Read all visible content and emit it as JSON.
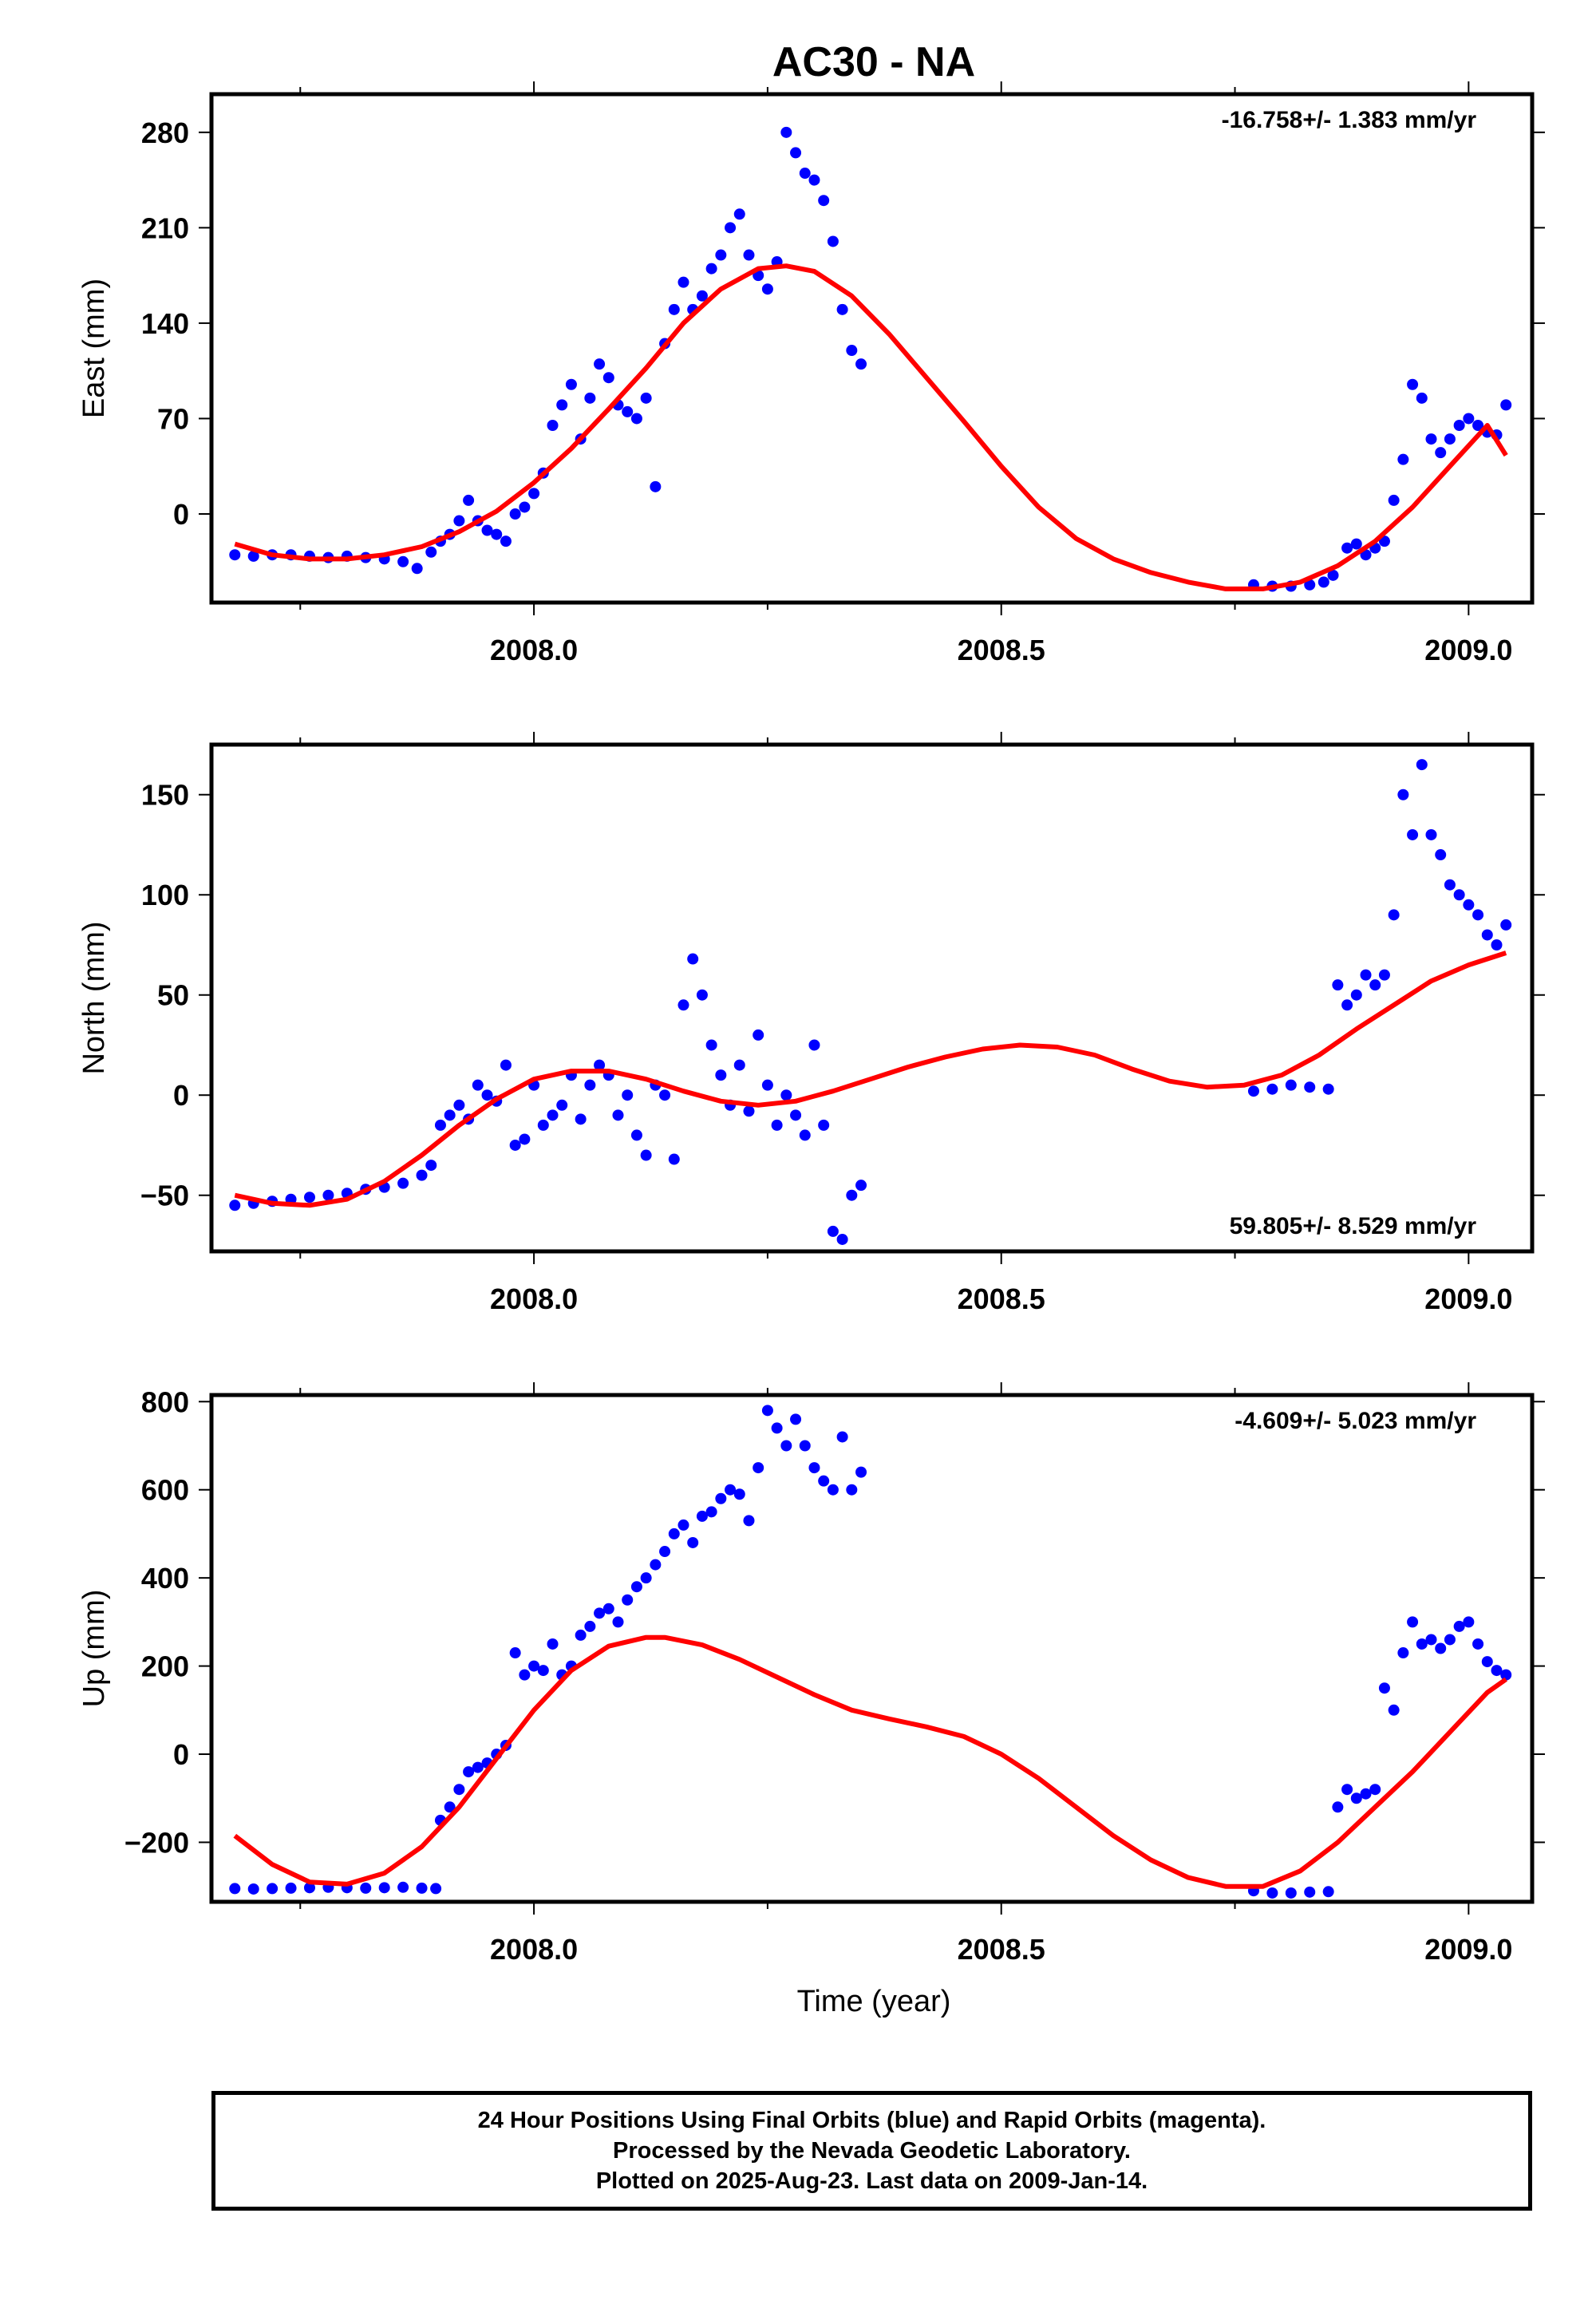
{
  "chart_data": {
    "title": "AC30 - NA",
    "type": "scatter",
    "xlabel": "Time (year)",
    "xlim": [
      2007.655,
      2009.068
    ],
    "xticks": [
      2008.0,
      2008.5,
      2009.0
    ],
    "xtick_labels": [
      "2008.0",
      "2008.5",
      "2009.0"
    ],
    "panels": [
      {
        "id": "east",
        "ylabel": "East (mm)",
        "ylim": [
          -65,
          308
        ],
        "yticks": [
          0,
          70,
          140,
          210,
          280
        ],
        "ytick_labels": [
          "0",
          "70",
          "140",
          "210",
          "280"
        ],
        "annotation": "-16.758+/- 1.383 mm/yr",
        "annotation_position": "top-right",
        "series": [
          {
            "kind": "scatter",
            "color": "#0000ff",
            "x": [
              2007.68,
              2007.7,
              2007.72,
              2007.74,
              2007.76,
              2007.78,
              2007.8,
              2007.82,
              2007.84,
              2007.86,
              2007.875,
              2007.89,
              2007.9,
              2007.91,
              2007.92,
              2007.93,
              2007.94,
              2007.95,
              2007.96,
              2007.97,
              2007.98,
              2007.99,
              2008.0,
              2008.01,
              2008.02,
              2008.03,
              2008.04,
              2008.05,
              2008.06,
              2008.07,
              2008.08,
              2008.09,
              2008.1,
              2008.11,
              2008.12,
              2008.13,
              2008.14,
              2008.15,
              2008.16,
              2008.17,
              2008.18,
              2008.19,
              2008.2,
              2008.21,
              2008.22,
              2008.23,
              2008.24,
              2008.25,
              2008.26,
              2008.27,
              2008.28,
              2008.29,
              2008.3,
              2008.31,
              2008.32,
              2008.33,
              2008.34,
              2008.35,
              2008.77,
              2008.79,
              2008.81,
              2008.83,
              2008.845,
              2008.855,
              2008.87,
              2008.88,
              2008.89,
              2008.9,
              2008.91,
              2008.92,
              2008.93,
              2008.94,
              2008.95,
              2008.96,
              2008.97,
              2008.98,
              2008.99,
              2009.0,
              2009.01,
              2009.02,
              2009.03,
              2009.04
            ],
            "y": [
              -30,
              -31,
              -30,
              -30,
              -31,
              -32,
              -31,
              -32,
              -33,
              -35,
              -40,
              -28,
              -20,
              -15,
              -5,
              10,
              -5,
              -12,
              -15,
              -20,
              0,
              5,
              15,
              30,
              65,
              80,
              95,
              55,
              85,
              110,
              100,
              80,
              75,
              70,
              85,
              20,
              125,
              150,
              170,
              150,
              160,
              180,
              190,
              210,
              220,
              190,
              175,
              165,
              185,
              280,
              265,
              250,
              245,
              230,
              200,
              150,
              120,
              110,
              -52,
              -53,
              -53,
              -52,
              -50,
              -45,
              -25,
              -22,
              -30,
              -25,
              -20,
              10,
              40,
              95,
              85,
              55,
              45,
              55,
              65,
              70,
              65,
              60,
              58,
              80
            ]
          },
          {
            "kind": "line",
            "color": "#ff0000",
            "x": [
              2007.68,
              2007.72,
              2007.76,
              2007.8,
              2007.84,
              2007.88,
              2007.92,
              2007.96,
              2008.0,
              2008.04,
              2008.08,
              2008.12,
              2008.16,
              2008.2,
              2008.24,
              2008.27,
              2008.3,
              2008.34,
              2008.38,
              2008.42,
              2008.46,
              2008.5,
              2008.54,
              2008.58,
              2008.62,
              2008.66,
              2008.7,
              2008.74,
              2008.78,
              2008.82,
              2008.86,
              2008.9,
              2008.94,
              2008.98,
              2009.02,
              2009.04
            ],
            "y": [
              -22,
              -30,
              -33,
              -33,
              -30,
              -24,
              -13,
              2,
              23,
              48,
              77,
              107,
              140,
              165,
              180,
              182,
              178,
              160,
              132,
              100,
              68,
              35,
              5,
              -18,
              -33,
              -43,
              -50,
              -55,
              -55,
              -50,
              -38,
              -20,
              5,
              35,
              65,
              43
            ]
          }
        ]
      },
      {
        "id": "north",
        "ylabel": "North (mm)",
        "ylim": [
          -78,
          175
        ],
        "yticks": [
          -50,
          0,
          50,
          100,
          150
        ],
        "ytick_labels": [
          "−50",
          "0",
          "50",
          "100",
          "150"
        ],
        "annotation": "59.805+/- 8.529 mm/yr",
        "annotation_position": "bottom-right",
        "series": [
          {
            "kind": "scatter",
            "color": "#0000ff",
            "x": [
              2007.68,
              2007.7,
              2007.72,
              2007.74,
              2007.76,
              2007.78,
              2007.8,
              2007.82,
              2007.84,
              2007.86,
              2007.88,
              2007.89,
              2007.9,
              2007.91,
              2007.92,
              2007.93,
              2007.94,
              2007.95,
              2007.96,
              2007.97,
              2007.98,
              2007.99,
              2008.0,
              2008.01,
              2008.02,
              2008.03,
              2008.04,
              2008.05,
              2008.06,
              2008.07,
              2008.08,
              2008.09,
              2008.1,
              2008.11,
              2008.12,
              2008.13,
              2008.14,
              2008.15,
              2008.16,
              2008.17,
              2008.18,
              2008.19,
              2008.2,
              2008.21,
              2008.22,
              2008.23,
              2008.24,
              2008.25,
              2008.26,
              2008.27,
              2008.28,
              2008.29,
              2008.3,
              2008.31,
              2008.32,
              2008.33,
              2008.34,
              2008.35,
              2008.77,
              2008.79,
              2008.81,
              2008.83,
              2008.85,
              2008.86,
              2008.87,
              2008.88,
              2008.89,
              2008.9,
              2008.91,
              2008.92,
              2008.93,
              2008.94,
              2008.95,
              2008.96,
              2008.97,
              2008.98,
              2008.99,
              2009.0,
              2009.01,
              2009.02,
              2009.03,
              2009.04
            ],
            "y": [
              -55,
              -54,
              -53,
              -52,
              -51,
              -50,
              -49,
              -47,
              -46,
              -44,
              -40,
              -35,
              -15,
              -10,
              -5,
              -12,
              5,
              0,
              -3,
              15,
              -25,
              -22,
              5,
              -15,
              -10,
              -5,
              10,
              -12,
              5,
              15,
              10,
              -10,
              0,
              -20,
              -30,
              5,
              0,
              -32,
              45,
              68,
              50,
              25,
              10,
              -5,
              15,
              -8,
              30,
              5,
              -15,
              0,
              -10,
              -20,
              25,
              -15,
              -68,
              -72,
              -50,
              -45,
              2,
              3,
              5,
              4,
              3,
              55,
              45,
              50,
              60,
              55,
              60,
              90,
              150,
              130,
              165,
              130,
              120,
              105,
              100,
              95,
              90,
              80,
              75,
              85
            ]
          },
          {
            "kind": "line",
            "color": "#ff0000",
            "x": [
              2007.68,
              2007.72,
              2007.76,
              2007.8,
              2007.84,
              2007.88,
              2007.92,
              2007.96,
              2008.0,
              2008.04,
              2008.08,
              2008.12,
              2008.16,
              2008.2,
              2008.24,
              2008.28,
              2008.32,
              2008.36,
              2008.4,
              2008.44,
              2008.48,
              2008.52,
              2008.56,
              2008.6,
              2008.64,
              2008.68,
              2008.72,
              2008.76,
              2008.8,
              2008.84,
              2008.88,
              2008.92,
              2008.96,
              2009.0,
              2009.04
            ],
            "y": [
              -50,
              -54,
              -55,
              -52,
              -43,
              -30,
              -15,
              -2,
              8,
              12,
              12,
              8,
              2,
              -3,
              -5,
              -3,
              2,
              8,
              14,
              19,
              23,
              25,
              24,
              20,
              13,
              7,
              4,
              5,
              10,
              20,
              33,
              45,
              57,
              65,
              71
            ]
          }
        ]
      },
      {
        "id": "up",
        "ylabel": "Up (mm)",
        "ylim": [
          -335,
          815
        ],
        "yticks": [
          -200,
          0,
          200,
          400,
          600,
          800
        ],
        "ytick_labels": [
          "−200",
          "0",
          "200",
          "400",
          "600",
          "800"
        ],
        "annotation": "-4.609+/- 5.023 mm/yr",
        "annotation_position": "top-right",
        "series": [
          {
            "kind": "scatter",
            "color": "#0000ff",
            "x": [
              2007.68,
              2007.7,
              2007.72,
              2007.74,
              2007.76,
              2007.78,
              2007.8,
              2007.82,
              2007.84,
              2007.86,
              2007.88,
              2007.895,
              2007.9,
              2007.91,
              2007.92,
              2007.93,
              2007.94,
              2007.95,
              2007.96,
              2007.97,
              2007.98,
              2007.99,
              2008.0,
              2008.01,
              2008.02,
              2008.03,
              2008.04,
              2008.05,
              2008.06,
              2008.07,
              2008.08,
              2008.09,
              2008.1,
              2008.11,
              2008.12,
              2008.13,
              2008.14,
              2008.15,
              2008.16,
              2008.17,
              2008.18,
              2008.19,
              2008.2,
              2008.21,
              2008.22,
              2008.23,
              2008.24,
              2008.25,
              2008.26,
              2008.27,
              2008.28,
              2008.29,
              2008.3,
              2008.31,
              2008.32,
              2008.33,
              2008.34,
              2008.35,
              2008.77,
              2008.79,
              2008.81,
              2008.83,
              2008.85,
              2008.86,
              2008.87,
              2008.88,
              2008.89,
              2008.9,
              2008.91,
              2008.92,
              2008.93,
              2008.94,
              2008.95,
              2008.96,
              2008.97,
              2008.98,
              2008.99,
              2009.0,
              2009.01,
              2009.02,
              2009.03,
              2009.04
            ],
            "y": [
              -305,
              -306,
              -305,
              -304,
              -303,
              -302,
              -303,
              -304,
              -303,
              -302,
              -304,
              -305,
              -150,
              -120,
              -80,
              -40,
              -30,
              -20,
              0,
              20,
              230,
              180,
              200,
              190,
              250,
              180,
              200,
              270,
              290,
              320,
              330,
              300,
              350,
              380,
              400,
              430,
              460,
              500,
              520,
              480,
              540,
              550,
              580,
              600,
              590,
              530,
              650,
              780,
              740,
              700,
              760,
              700,
              650,
              620,
              600,
              720,
              600,
              640,
              -310,
              -315,
              -315,
              -313,
              -312,
              -120,
              -80,
              -100,
              -90,
              -80,
              150,
              100,
              230,
              300,
              250,
              260,
              240,
              260,
              290,
              300,
              250,
              210,
              190,
              180
            ]
          },
          {
            "kind": "line",
            "color": "#ff0000",
            "x": [
              2007.68,
              2007.72,
              2007.76,
              2007.8,
              2007.84,
              2007.88,
              2007.92,
              2007.96,
              2008.0,
              2008.04,
              2008.08,
              2008.12,
              2008.14,
              2008.18,
              2008.22,
              2008.26,
              2008.3,
              2008.34,
              2008.38,
              2008.42,
              2008.46,
              2008.5,
              2008.54,
              2008.58,
              2008.62,
              2008.66,
              2008.7,
              2008.74,
              2008.78,
              2008.82,
              2008.86,
              2008.9,
              2008.94,
              2008.98,
              2009.02,
              2009.04
            ],
            "y": [
              -185,
              -250,
              -290,
              -295,
              -270,
              -210,
              -120,
              -10,
              100,
              190,
              245,
              265,
              265,
              248,
              215,
              175,
              135,
              100,
              80,
              62,
              40,
              0,
              -55,
              -120,
              -185,
              -240,
              -280,
              -300,
              -300,
              -265,
              -200,
              -120,
              -40,
              50,
              140,
              170
            ]
          }
        ]
      }
    ]
  },
  "footer": {
    "line1": "24 Hour Positions Using Final Orbits (blue) and Rapid Orbits (magenta).",
    "line2": "Processed by the Nevada Geodetic Laboratory.",
    "line3": "Plotted on 2025-Aug-23. Last data on 2009-Jan-14."
  }
}
